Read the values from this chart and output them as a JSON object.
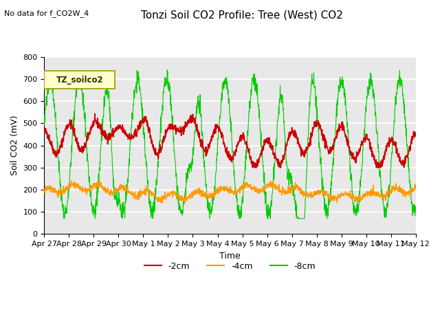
{
  "title": "Tonzi Soil CO2 Profile: Tree (West) CO2",
  "title_note": "No data for f_CO2W_4",
  "ylabel": "Soil CO2 (mV)",
  "xlabel": "Time",
  "legend_label": "TZ_soilco2",
  "ylim": [
    0,
    800
  ],
  "xtick_labels": [
    "Apr 27",
    "Apr 28",
    "Apr 29",
    "Apr 30",
    "May 1",
    "May 2",
    "May 3",
    "May 4",
    "May 5",
    "May 6",
    "May 7",
    "May 8",
    "May 9",
    "May 10",
    "May 11",
    "May 12"
  ],
  "xtick_pos": [
    0,
    1,
    2,
    3,
    4,
    5,
    6,
    7,
    8,
    9,
    10,
    11,
    12,
    13,
    14,
    15
  ],
  "line_2cm_color": "#cc0000",
  "line_4cm_color": "#ff9900",
  "line_8cm_color": "#00cc00",
  "bg_color": "#e8e8e8",
  "legend_items": [
    "-2cm",
    "-4cm",
    "-8cm"
  ],
  "yticks": [
    0,
    100,
    200,
    300,
    400,
    500,
    600,
    700,
    800
  ]
}
